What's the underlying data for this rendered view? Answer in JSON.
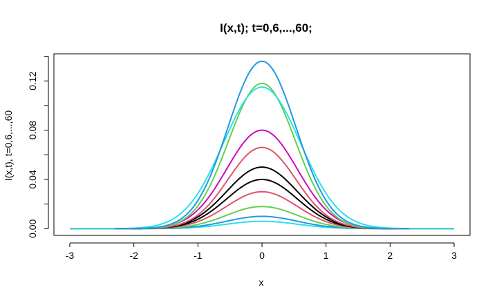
{
  "chart_data": {
    "type": "line",
    "title": "I(x,t); t=0,6,...,60;",
    "xlabel": "x",
    "ylabel": "I(x,t), t=0,6,...,60",
    "xlim": [
      -3,
      3
    ],
    "ylim": [
      -0.006,
      0.142
    ],
    "grid": false,
    "legend": "none",
    "xticks": [
      -3,
      -2,
      -1,
      0,
      1,
      2,
      3
    ],
    "xtick_labels": [
      "-3",
      "-2",
      "-1",
      "0",
      "1",
      "2",
      "3"
    ],
    "yticks": [
      0.0,
      0.02,
      0.04,
      0.06,
      0.08,
      0.1,
      0.12,
      0.14
    ],
    "ytick_labels": [
      "0.00",
      "",
      "0.04",
      "",
      "0.08",
      "",
      "0.12",
      ""
    ],
    "series": [
      {
        "color": "#28e2e5",
        "peak": 0.006,
        "sigma": 0.55,
        "xrange": [
          -3,
          3
        ]
      },
      {
        "color": "#2297e6",
        "peak": 0.01,
        "sigma": 0.55,
        "xrange": [
          -3,
          3
        ]
      },
      {
        "color": "#61d04f",
        "peak": 0.018,
        "sigma": 0.55,
        "xrange": [
          -3,
          3
        ]
      },
      {
        "color": "#df536b",
        "peak": 0.03,
        "sigma": 0.55,
        "xrange": [
          -3,
          3
        ]
      },
      {
        "color": "#000000",
        "peak": 0.04,
        "sigma": 0.55,
        "xrange": [
          -2.3,
          2.3
        ]
      },
      {
        "color": "#000000",
        "peak": 0.05,
        "sigma": 0.55,
        "xrange": [
          -2.3,
          2.3
        ]
      },
      {
        "color": "#df536b",
        "peak": 0.066,
        "sigma": 0.53,
        "xrange": [
          -2.3,
          2.3
        ]
      },
      {
        "color": "#cd0bbc",
        "peak": 0.08,
        "sigma": 0.55,
        "xrange": [
          -2.3,
          2.3
        ]
      },
      {
        "color": "#61d04f",
        "peak": 0.118,
        "sigma": 0.52,
        "xrange": [
          -2.3,
          2.3
        ]
      },
      {
        "color": "#28e2e5",
        "peak": 0.115,
        "sigma": 0.6,
        "xrange": [
          -3,
          3
        ]
      },
      {
        "color": "#2297e6",
        "peak": 0.136,
        "sigma": 0.53,
        "xrange": [
          -2.3,
          2.3
        ]
      }
    ]
  }
}
